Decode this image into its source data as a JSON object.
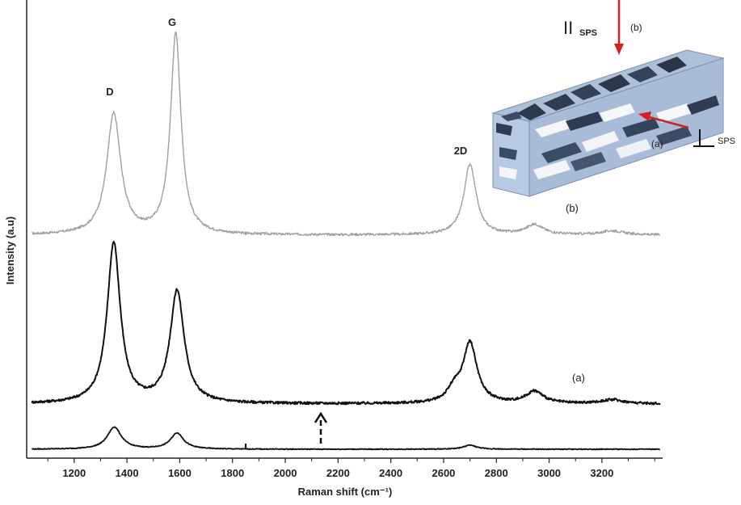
{
  "chart_data": {
    "type": "line",
    "xlabel": "Raman shift (cm⁻¹)",
    "ylabel": "Intensity (a.u)",
    "xlim": [
      1020,
      3430
    ],
    "xticks": [
      1200,
      1400,
      1600,
      1800,
      2000,
      2200,
      2400,
      2600,
      2800,
      3000,
      3200
    ],
    "y_axis_values_shown": false,
    "grid": false,
    "legend": "none",
    "peak_labels": [
      {
        "text": "D",
        "x": 1350
      },
      {
        "text": "G",
        "x": 1585
      },
      {
        "text": "2D",
        "x": 2700
      }
    ],
    "series": [
      {
        "name": "(b)",
        "color": "#a0a0a0",
        "baseline": 0.0,
        "peaks": [
          {
            "center": 1350,
            "height": 0.6,
            "width": 32
          },
          {
            "center": 1585,
            "height": 1.0,
            "width": 24
          },
          {
            "center": 2700,
            "height": 0.35,
            "width": 28
          },
          {
            "center": 2945,
            "height": 0.05,
            "width": 40
          },
          {
            "center": 3240,
            "height": 0.02,
            "width": 50
          }
        ]
      },
      {
        "name": "(a)",
        "color": "#111111",
        "baseline": 0.0,
        "peaks": [
          {
            "center": 1350,
            "height": 0.8,
            "width": 30
          },
          {
            "center": 1590,
            "height": 0.56,
            "width": 32
          },
          {
            "center": 2700,
            "height": 0.3,
            "width": 32
          },
          {
            "center": 2640,
            "height": 0.06,
            "width": 30
          },
          {
            "center": 2945,
            "height": 0.06,
            "width": 40
          },
          {
            "center": 3240,
            "height": 0.02,
            "width": 50
          }
        ]
      },
      {
        "name": "",
        "color": "#111111",
        "baseline": 0.0,
        "peaks": [
          {
            "center": 1352,
            "height": 0.11,
            "width": 32
          },
          {
            "center": 1590,
            "height": 0.08,
            "width": 30
          },
          {
            "center": 2700,
            "height": 0.02,
            "width": 30
          }
        ]
      }
    ],
    "annotation_arrow": {
      "x": 2160,
      "direction": "up",
      "style": "dashed"
    },
    "inset": {
      "labels": {
        "parallel": "II",
        "parallel_sub": "SPS",
        "perpendicular": "SPS",
        "view_a": "(a)",
        "view_b": "(b)"
      },
      "arrow_color": "#d42020"
    }
  }
}
